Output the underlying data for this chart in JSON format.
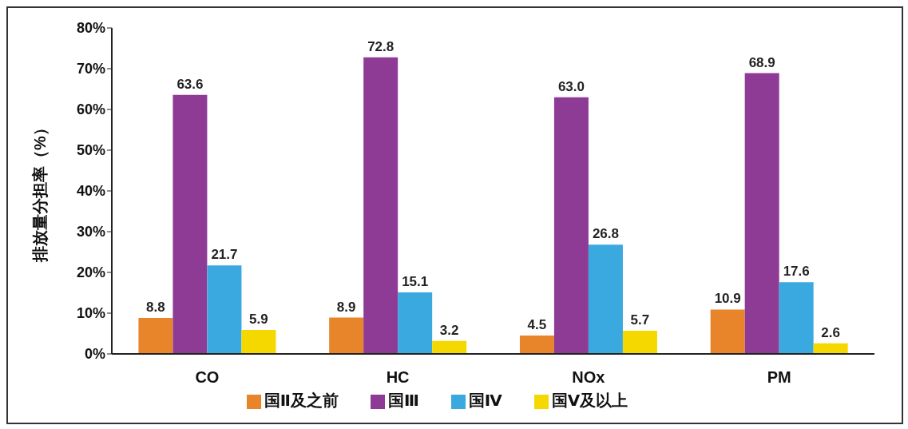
{
  "chart_data": {
    "type": "bar",
    "ylabel": "排放量分担率（%）",
    "categories": [
      "CO",
      "HC",
      "NOx",
      "PM"
    ],
    "series": [
      {
        "name": "国Ⅱ及之前",
        "color": "#e8842a",
        "values": [
          8.8,
          8.9,
          4.5,
          10.9
        ],
        "value_labels": [
          "8.8",
          "8.9",
          "4.5",
          "10.9"
        ]
      },
      {
        "name": "国Ⅲ",
        "color": "#8e3b96",
        "values": [
          63.6,
          72.8,
          63.0,
          68.9
        ],
        "value_labels": [
          "63.6",
          "72.8",
          "63.0",
          "68.9"
        ]
      },
      {
        "name": "国Ⅳ",
        "color": "#3aa9e0",
        "values": [
          21.7,
          15.1,
          26.8,
          17.6
        ],
        "value_labels": [
          "21.7",
          "15.1",
          "26.8",
          "17.6"
        ]
      },
      {
        "name": "国Ⅴ及以上",
        "color": "#f5d800",
        "values": [
          5.9,
          3.2,
          5.7,
          2.6
        ],
        "value_labels": [
          "5.9",
          "3.2",
          "5.7",
          "2.6"
        ]
      }
    ],
    "ylim": [
      0,
      80
    ],
    "yticks": [
      {
        "value": 0,
        "label": "0%"
      },
      {
        "value": 10,
        "label": "10%"
      },
      {
        "value": 20,
        "label": "20%"
      },
      {
        "value": 30,
        "label": "30%"
      },
      {
        "value": 40,
        "label": "40%"
      },
      {
        "value": 50,
        "label": "50%"
      },
      {
        "value": 60,
        "label": "60%"
      },
      {
        "value": 70,
        "label": "70%"
      },
      {
        "value": 80,
        "label": "80%"
      }
    ],
    "grid": false,
    "legend": "bottom"
  }
}
